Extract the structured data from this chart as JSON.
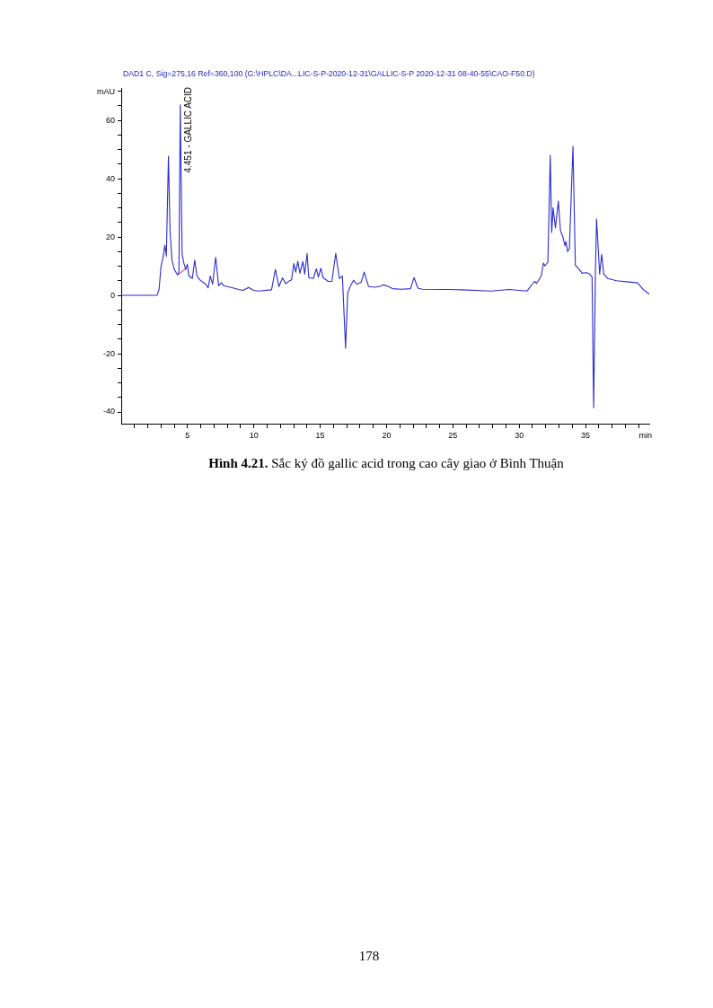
{
  "chart_data": {
    "type": "line",
    "title": "DAD1 C, Sig=275,16 Ref=360,100 (G:\\HPLC\\DA...LIC-S-P-2020-12-31\\GALLIC-S-P 2020-12-31 08-40-55\\CAO-F50.D)",
    "xlabel": "min",
    "ylabel": "mAU",
    "annotations": [
      {
        "text": "4.451 - GALLIC ACID",
        "x": 4.451,
        "y": 65.3
      },
      "Hình 4.21.",
      "Sắc ký đồ gallic acid trong cao cây giao ở Bình Thuận",
      "178"
    ],
    "xlim": [
      0,
      39.8
    ],
    "ylim": [
      -44,
      71
    ],
    "xticks": [
      {
        "value": 1,
        "label": null
      },
      {
        "value": 2,
        "label": null
      },
      {
        "value": 3,
        "label": null
      },
      {
        "value": 4,
        "label": null
      },
      5,
      {
        "value": 6,
        "label": null
      },
      {
        "value": 7,
        "label": null
      },
      {
        "value": 8,
        "label": null
      },
      {
        "value": 9,
        "label": null
      },
      10,
      {
        "value": 11,
        "label": null
      },
      {
        "value": 12,
        "label": null
      },
      {
        "value": 13,
        "label": null
      },
      {
        "value": 14,
        "label": null
      },
      15,
      {
        "value": 16,
        "label": null
      },
      {
        "value": 17,
        "label": null
      },
      {
        "value": 18,
        "label": null
      },
      {
        "value": 19,
        "label": null
      },
      20,
      {
        "value": 21,
        "label": null
      },
      {
        "value": 22,
        "label": null
      },
      {
        "value": 23,
        "label": null
      },
      {
        "value": 24,
        "label": null
      },
      25,
      {
        "value": 26,
        "label": null
      },
      {
        "value": 27,
        "label": null
      },
      {
        "value": 28,
        "label": null
      },
      {
        "value": 29,
        "label": null
      },
      30,
      {
        "value": 31,
        "label": null
      },
      {
        "value": 32,
        "label": null
      },
      {
        "value": 33,
        "label": null
      },
      {
        "value": 34,
        "label": null
      },
      35,
      {
        "value": 36,
        "label": null
      },
      {
        "value": 37,
        "label": null
      },
      {
        "value": 38,
        "label": null
      },
      {
        "value": 39,
        "label": null
      }
    ],
    "yticks": [
      -40,
      {
        "value": -35,
        "label": null
      },
      {
        "value": -30,
        "label": null
      },
      {
        "value": -25,
        "label": null
      },
      -20,
      {
        "value": -15,
        "label": null
      },
      {
        "value": -10,
        "label": null
      },
      {
        "value": -5,
        "label": null
      },
      0,
      {
        "value": 5,
        "label": null
      },
      {
        "value": 10,
        "label": null
      },
      {
        "value": 15,
        "label": null
      },
      20,
      {
        "value": 25,
        "label": null
      },
      {
        "value": 30,
        "label": null
      },
      {
        "value": 35,
        "label": null
      },
      40,
      {
        "value": 45,
        "label": null
      },
      {
        "value": 50,
        "label": null
      },
      {
        "value": 55,
        "label": null
      },
      60,
      {
        "value": 65,
        "label": null
      },
      {
        "value": 70,
        "label": null
      }
    ],
    "line_style": "solid",
    "series": [
      {
        "color": "#2b2bcf",
        "x": [
          0,
          2.7,
          2.85,
          3.0,
          3.15,
          3.29,
          3.4,
          3.56,
          3.68,
          3.83,
          4.0,
          4.24,
          4.35,
          4.451,
          4.59,
          4.73,
          4.86,
          4.98,
          5.09,
          5.36,
          5.54,
          5.7,
          5.93,
          6.37,
          6.55,
          6.71,
          6.89,
          7.12,
          7.34,
          7.55,
          7.72,
          8.29,
          8.85,
          9.19,
          9.6,
          9.98,
          10.32,
          11.33,
          11.62,
          11.89,
          12.16,
          12.39,
          12.68,
          12.84,
          13.01,
          13.15,
          13.31,
          13.47,
          13.69,
          13.83,
          14.01,
          14.14,
          14.48,
          14.71,
          14.86,
          15.05,
          15.22,
          15.61,
          15.88,
          16.17,
          16.44,
          16.67,
          16.91,
          17.07,
          17.25,
          17.52,
          17.75,
          18.09,
          18.31,
          18.65,
          19.1,
          19.44,
          19.78,
          20.11,
          20.45,
          21.13,
          21.8,
          22.07,
          22.36,
          22.7,
          24.5,
          25.63,
          27.88,
          29.24,
          30.59,
          31.15,
          31.31,
          31.67,
          31.82,
          31.93,
          32.16,
          32.34,
          32.45,
          32.55,
          32.73,
          32.95,
          33.11,
          33.29,
          33.45,
          33.52,
          33.65,
          33.78,
          34.05,
          34.23,
          34.52,
          34.74,
          35.08,
          35.31,
          35.49,
          35.61,
          35.75,
          35.83,
          36.06,
          36.22,
          36.37,
          36.67,
          37.34,
          38.24,
          38.92,
          39.37,
          39.8
        ],
        "values": [
          0,
          0,
          2,
          9.9,
          13,
          17.2,
          13.4,
          47.7,
          22,
          11.9,
          8.9,
          7.0,
          7.8,
          65.3,
          14,
          10.9,
          8.9,
          10.7,
          6.8,
          5.8,
          12.1,
          6.8,
          5.3,
          3.8,
          2.6,
          6.6,
          3.8,
          13.1,
          3.3,
          4.3,
          3.3,
          2.7,
          2.0,
          1.7,
          2.7,
          1.7,
          1.5,
          1.9,
          8.9,
          3.0,
          6.0,
          4.0,
          5.0,
          5.3,
          10.9,
          8.0,
          11.7,
          7.6,
          11.6,
          7.3,
          14.4,
          6.0,
          5.8,
          9.1,
          6.3,
          9.3,
          6.0,
          4.8,
          4.8,
          14.4,
          5.8,
          6.6,
          -18.1,
          0.7,
          3.0,
          5.2,
          3.8,
          4.5,
          8.0,
          3.0,
          2.8,
          3.0,
          3.6,
          3.1,
          2.3,
          2.1,
          2.3,
          6.1,
          2.5,
          2.1,
          2.0,
          1.9,
          1.5,
          2.0,
          1.5,
          4.8,
          4.1,
          6.8,
          11.1,
          10.1,
          11.4,
          48.0,
          21.6,
          30.0,
          23.1,
          32.3,
          22.1,
          20.1,
          17.0,
          18.5,
          15.0,
          16.0,
          51.1,
          10.4,
          8.9,
          7.6,
          7.8,
          7.3,
          6.3,
          -38.5,
          10,
          26.2,
          7.3,
          14.1,
          7.3,
          5.8,
          5.0,
          4.6,
          4.3,
          1.9,
          0.5
        ]
      },
      {
        "color": "#e0409a",
        "x": [
          4.3,
          4.86
        ],
        "values": [
          7.2,
          9.1
        ]
      }
    ]
  }
}
